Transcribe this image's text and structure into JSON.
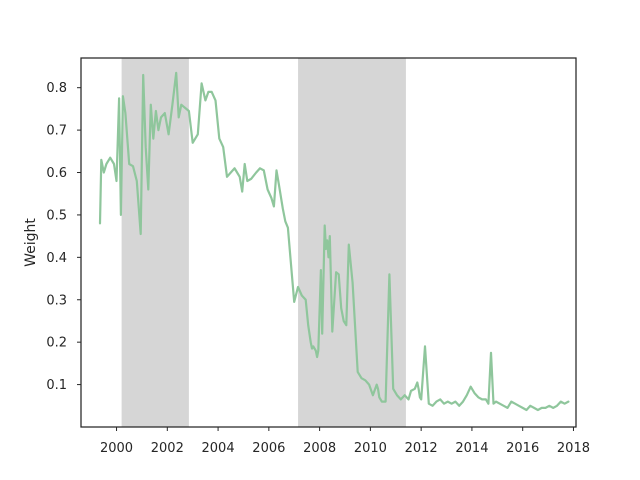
{
  "chart_data": {
    "type": "line",
    "title": "",
    "xlabel": "",
    "ylabel": "Weight",
    "xlim": [
      1998.6,
      2018.1
    ],
    "ylim": [
      0.0,
      0.87
    ],
    "grid": false,
    "legend": "none",
    "x_ticks": [
      2000,
      2002,
      2004,
      2006,
      2008,
      2010,
      2012,
      2014,
      2016,
      2018
    ],
    "y_ticks": [
      0.1,
      0.2,
      0.3,
      0.4,
      0.5,
      0.6,
      0.7,
      0.8
    ],
    "shaded_periods": [
      [
        2000.2,
        2002.85
      ],
      [
        2007.15,
        2011.4
      ]
    ],
    "colors": {
      "line": "#8fc69c",
      "shade": "#d6d6d6",
      "axes": "#262626"
    },
    "series": [
      {
        "x": [
          1999.35,
          1999.4,
          1999.5,
          1999.6,
          1999.75,
          1999.9,
          2000.0,
          2000.1,
          2000.17,
          2000.25,
          2000.35,
          2000.5,
          2000.65,
          2000.8,
          2000.95,
          2001.05,
          2001.15,
          2001.25,
          2001.35,
          2001.45,
          2001.55,
          2001.65,
          2001.75,
          2001.9,
          2002.05,
          2002.2,
          2002.35,
          2002.45,
          2002.55,
          2002.65,
          2002.75,
          2002.85,
          2003.0,
          2003.2,
          2003.35,
          2003.5,
          2003.62,
          2003.75,
          2003.9,
          2004.05,
          2004.2,
          2004.35,
          2004.5,
          2004.65,
          2004.75,
          2004.85,
          2004.95,
          2005.05,
          2005.15,
          2005.3,
          2005.5,
          2005.65,
          2005.8,
          2005.95,
          2006.1,
          2006.2,
          2006.3,
          2006.4,
          2006.55,
          2006.65,
          2006.75,
          2006.85,
          2007.0,
          2007.15,
          2007.3,
          2007.45,
          2007.55,
          2007.65,
          2007.7,
          2007.75,
          2007.85,
          2007.9,
          2007.95,
          2008.05,
          2008.1,
          2008.2,
          2008.25,
          2008.3,
          2008.35,
          2008.4,
          2008.5,
          2008.65,
          2008.75,
          2008.85,
          2008.95,
          2009.05,
          2009.15,
          2009.3,
          2009.5,
          2009.65,
          2009.8,
          2009.95,
          2010.1,
          2010.25,
          2010.3,
          2010.35,
          2010.45,
          2010.6,
          2010.75,
          2010.9,
          2011.05,
          2011.2,
          2011.35,
          2011.5,
          2011.6,
          2011.75,
          2011.85,
          2011.9,
          2011.95,
          2012.0,
          2012.15,
          2012.3,
          2012.45,
          2012.6,
          2012.75,
          2012.9,
          2013.05,
          2013.2,
          2013.35,
          2013.5,
          2013.65,
          2013.8,
          2013.95,
          2014.1,
          2014.25,
          2014.4,
          2014.55,
          2014.65,
          2014.75,
          2014.85,
          2014.95,
          2015.1,
          2015.25,
          2015.4,
          2015.55,
          2015.7,
          2015.85,
          2016.0,
          2016.15,
          2016.3,
          2016.45,
          2016.6,
          2016.75,
          2016.9,
          2017.05,
          2017.2,
          2017.35,
          2017.5,
          2017.65,
          2017.8
        ],
        "y": [
          0.48,
          0.63,
          0.6,
          0.62,
          0.635,
          0.62,
          0.58,
          0.775,
          0.5,
          0.78,
          0.74,
          0.62,
          0.615,
          0.58,
          0.455,
          0.83,
          0.66,
          0.56,
          0.76,
          0.68,
          0.745,
          0.7,
          0.73,
          0.74,
          0.69,
          0.76,
          0.835,
          0.73,
          0.76,
          0.755,
          0.75,
          0.745,
          0.67,
          0.69,
          0.81,
          0.77,
          0.79,
          0.79,
          0.77,
          0.68,
          0.66,
          0.59,
          0.6,
          0.61,
          0.6,
          0.59,
          0.555,
          0.62,
          0.58,
          0.585,
          0.6,
          0.61,
          0.605,
          0.56,
          0.54,
          0.52,
          0.605,
          0.57,
          0.515,
          0.485,
          0.47,
          0.4,
          0.295,
          0.33,
          0.31,
          0.3,
          0.24,
          0.2,
          0.185,
          0.19,
          0.18,
          0.165,
          0.18,
          0.37,
          0.22,
          0.475,
          0.42,
          0.44,
          0.4,
          0.45,
          0.225,
          0.365,
          0.36,
          0.28,
          0.25,
          0.24,
          0.43,
          0.34,
          0.13,
          0.115,
          0.11,
          0.1,
          0.075,
          0.1,
          0.09,
          0.07,
          0.06,
          0.06,
          0.36,
          0.09,
          0.075,
          0.065,
          0.075,
          0.065,
          0.085,
          0.09,
          0.105,
          0.09,
          0.07,
          0.065,
          0.19,
          0.055,
          0.05,
          0.06,
          0.065,
          0.055,
          0.06,
          0.055,
          0.06,
          0.05,
          0.06,
          0.075,
          0.095,
          0.08,
          0.07,
          0.065,
          0.065,
          0.055,
          0.175,
          0.055,
          0.06,
          0.055,
          0.05,
          0.045,
          0.06,
          0.055,
          0.05,
          0.045,
          0.04,
          0.05,
          0.045,
          0.04,
          0.045,
          0.045,
          0.05,
          0.045,
          0.05,
          0.06,
          0.055,
          0.06
        ]
      }
    ]
  }
}
